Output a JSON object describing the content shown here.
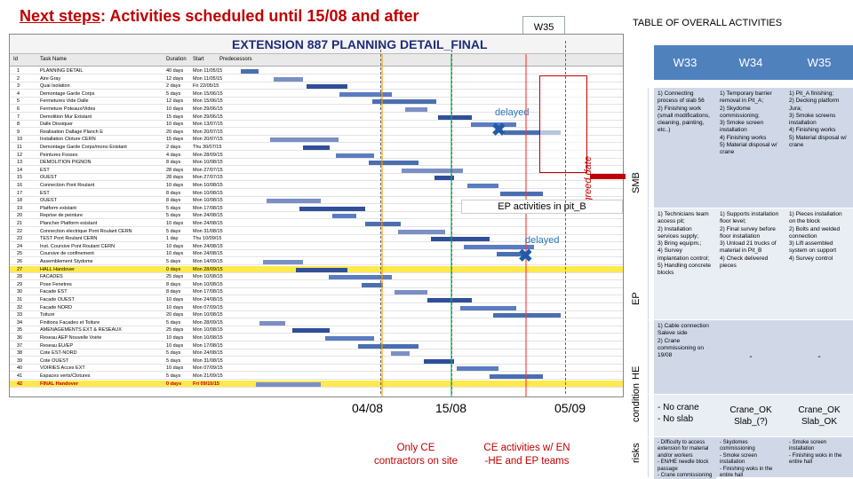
{
  "header": {
    "title_prefix": "Next steps",
    "title_rest": ": Activities scheduled until 15/08 and after",
    "w35_tab": "W35",
    "table_title": "TABLE OF OVERALL ACTIVITIES"
  },
  "gantt": {
    "title": "EXTENSION 887 PLANNING DETAIL_FINAL",
    "columns": [
      "Id",
      "Task Name",
      "Duration",
      "Start",
      "Predecessors"
    ],
    "rows": [
      {
        "id": "1",
        "name": "PLANNING DETAIL",
        "dur": "40 days",
        "start": "Mon 11/05/15"
      },
      {
        "id": "2",
        "name": "Aire Gray",
        "dur": "12 days",
        "start": "Mon 11/05/15"
      },
      {
        "id": "3",
        "name": "Quai Isolation",
        "dur": "2 days",
        "start": "Fri 22/05/15"
      },
      {
        "id": "4",
        "name": "Demontage Garde Corps",
        "dur": "5 days",
        "start": "Mon 15/06/15"
      },
      {
        "id": "5",
        "name": "Fermetures Vide Dalle",
        "dur": "12 days",
        "start": "Mon 15/06/15"
      },
      {
        "id": "6",
        "name": "Fermeture Poteaux/Vides",
        "dur": "10 days",
        "start": "Mon 29/06/15"
      },
      {
        "id": "7",
        "name": "Demolition Mur Existant",
        "dur": "15 days",
        "start": "Mon 29/06/15"
      },
      {
        "id": "8",
        "name": "Dalle Dissiquer",
        "dur": "10 days",
        "start": "Mon 13/07/15"
      },
      {
        "id": "9",
        "name": "Realisation Dallage Planch E",
        "dur": "20 days",
        "start": "Mon 20/07/15"
      },
      {
        "id": "10",
        "name": "Installation Cloture CERN",
        "dur": "15 days",
        "start": "Mon 20/07/15"
      },
      {
        "id": "11",
        "name": "Demontage Garde Corps/mono Existant",
        "dur": "2 days",
        "start": "Thu 30/07/15"
      },
      {
        "id": "12",
        "name": "Peintures Fosses",
        "dur": "4 days",
        "start": "Mon 28/09/15"
      },
      {
        "id": "13",
        "name": "DEMOLITION PIGNON",
        "dur": "8 days",
        "start": "Mon 10/08/15"
      },
      {
        "id": "14",
        "name": "EST",
        "dur": "28 days",
        "start": "Mon 27/07/15"
      },
      {
        "id": "15",
        "name": "OUEST",
        "dur": "28 days",
        "start": "Mon 27/07/15"
      },
      {
        "id": "16",
        "name": "Connection Pont Roulant",
        "dur": "10 days",
        "start": "Mon 10/08/15"
      },
      {
        "id": "17",
        "name": "EST",
        "dur": "8 days",
        "start": "Mon 10/08/15"
      },
      {
        "id": "18",
        "name": "OUEST",
        "dur": "8 days",
        "start": "Mon 10/08/15"
      },
      {
        "id": "19",
        "name": "Platform existant",
        "dur": "5 days",
        "start": "Mon 17/08/15"
      },
      {
        "id": "20",
        "name": "Reprise de peinture",
        "dur": "5 days",
        "start": "Mon 24/08/15"
      },
      {
        "id": "21",
        "name": "Plancher Platform existant",
        "dur": "10 days",
        "start": "Mon 24/08/15"
      },
      {
        "id": "22",
        "name": "Connection electrique Pont Roulant CERN",
        "dur": "5 days",
        "start": "Mon 31/08/15"
      },
      {
        "id": "23",
        "name": "TEST Pont Roulant CERN",
        "dur": "1 day",
        "start": "Thu 10/09/15"
      },
      {
        "id": "24",
        "name": "Inst. Coursive Pont Roulant CERN",
        "dur": "10 days",
        "start": "Mon 24/08/15"
      },
      {
        "id": "25",
        "name": "Coursive de confinement",
        "dur": "10 days",
        "start": "Mon 24/08/15"
      },
      {
        "id": "26",
        "name": "Assemblement Stydome",
        "dur": "5 days",
        "start": "Mon 14/09/15"
      },
      {
        "id": "27",
        "name": "HALL Handover",
        "dur": "0 days",
        "start": "Mon 28/09/15",
        "highlight": true
      },
      {
        "id": "28",
        "name": "FACADES",
        "dur": "25 days",
        "start": "Mon 10/08/15"
      },
      {
        "id": "29",
        "name": "Pose Fenetres",
        "dur": "8 days",
        "start": "Mon 10/08/15"
      },
      {
        "id": "30",
        "name": "Facade EST",
        "dur": "8 days",
        "start": "Mon 17/08/15"
      },
      {
        "id": "31",
        "name": "Facade OUEST",
        "dur": "10 days",
        "start": "Mon 24/08/15"
      },
      {
        "id": "32",
        "name": "Facade NORD",
        "dur": "10 days",
        "start": "Mon 07/09/15"
      },
      {
        "id": "33",
        "name": "Toiture",
        "dur": "20 days",
        "start": "Mon 10/08/15"
      },
      {
        "id": "34",
        "name": "Finitions Facades et Toiture",
        "dur": "5 days",
        "start": "Mon 28/09/15"
      },
      {
        "id": "35",
        "name": "AMENAGEMENTS EXT & RESEAUX",
        "dur": "25 days",
        "start": "Mon 10/08/15"
      },
      {
        "id": "36",
        "name": "Reseau AEP Nouvelle Voirie",
        "dur": "10 days",
        "start": "Mon 10/08/15"
      },
      {
        "id": "37",
        "name": "Reseau EU/EP",
        "dur": "10 days",
        "start": "Mon 17/08/15"
      },
      {
        "id": "38",
        "name": "Cote EST-NORD",
        "dur": "5 days",
        "start": "Mon 24/08/15"
      },
      {
        "id": "39",
        "name": "Cote OUEST",
        "dur": "5 days",
        "start": "Mon 31/08/15"
      },
      {
        "id": "40",
        "name": "VOIRIES Acces EXT",
        "dur": "10 days",
        "start": "Mon 07/09/15"
      },
      {
        "id": "41",
        "name": "Espaces verts/Clotures",
        "dur": "5 days",
        "start": "Mon 21/09/15"
      },
      {
        "id": "42",
        "name": "FINAL Handover",
        "dur": "0 days",
        "start": "Fri 09/10/15",
        "final": true
      }
    ],
    "agreed_date": "Agreed date",
    "delayed_1": "delayed",
    "delayed_2": "delayed",
    "ep_band": "EP activities in pit_B"
  },
  "dates": {
    "d1": "04/08",
    "d2": "15/08",
    "d3": "05/09",
    "caption_left": "Only CE\ncontractors on site",
    "caption_right": "CE activities w/   EN\n-HE and EP teams"
  },
  "overview": {
    "weeks": [
      "W33",
      "W34",
      "W35"
    ],
    "rows": [
      {
        "label": "SMB",
        "cells": [
          "1) Connecting process of slab 56\n2) Finishing work (small modifications, cleaning, painting, etc..)",
          "1) Temporary barrier removal in Pit_A;\n2) Skydome commissioning;\n3) Smoke screen installation\n4) Finishing works\n5) Material disposal w/ crane",
          "1) Pit_A finishing;\n2) Decking platform Jura;\n3) Smoke screens installation\n4) Finishing works\n5) Material disposal w/ crane"
        ]
      },
      {
        "label": "EP",
        "cells": [
          "1) Technicians team access pit;\n2) Installation services supply;\n3) Bring equipm.;\n4) Survey implantation control;\n5) Handling concrete blocks",
          "1) Supports installation floor level;\n2) Final survey before floor installation\n3) Unload 21 trucks of material in Pit_B\n4) Check delivered pieces",
          "1) Pieces installation on the block\n2) Bolts and welded connection\n3) Lift assembled system on support\n4) Survey control"
        ]
      },
      {
        "label": "HE",
        "cells": [
          "1) Cable connection Saleve side\n2) Crane commissioning on 19/08",
          "-",
          "-"
        ]
      },
      {
        "label": "condition",
        "cells": [
          "- No crane\n- No slab",
          "Crane_OK\nSlab_(?)",
          "Crane_OK\nSlab_OK"
        ]
      },
      {
        "label": "risks",
        "cells": [
          "- Difficulty to access extension for material and/or workers\n- EN/HE needle block passage\n- Crane commissioning",
          "- Skydomes commissioning\n- Smoke screen installation\n- Finishing woks in the entire hall",
          "- Smoke screen installation\n- Finishing woks in the entire hall"
        ]
      }
    ]
  },
  "colors": {
    "title_red": "#c00000",
    "header_blue": "#4f81bd",
    "band_a": "#d0d8e8",
    "band_b": "#e9edf4",
    "milestone_yellow": "#ffe94d"
  }
}
